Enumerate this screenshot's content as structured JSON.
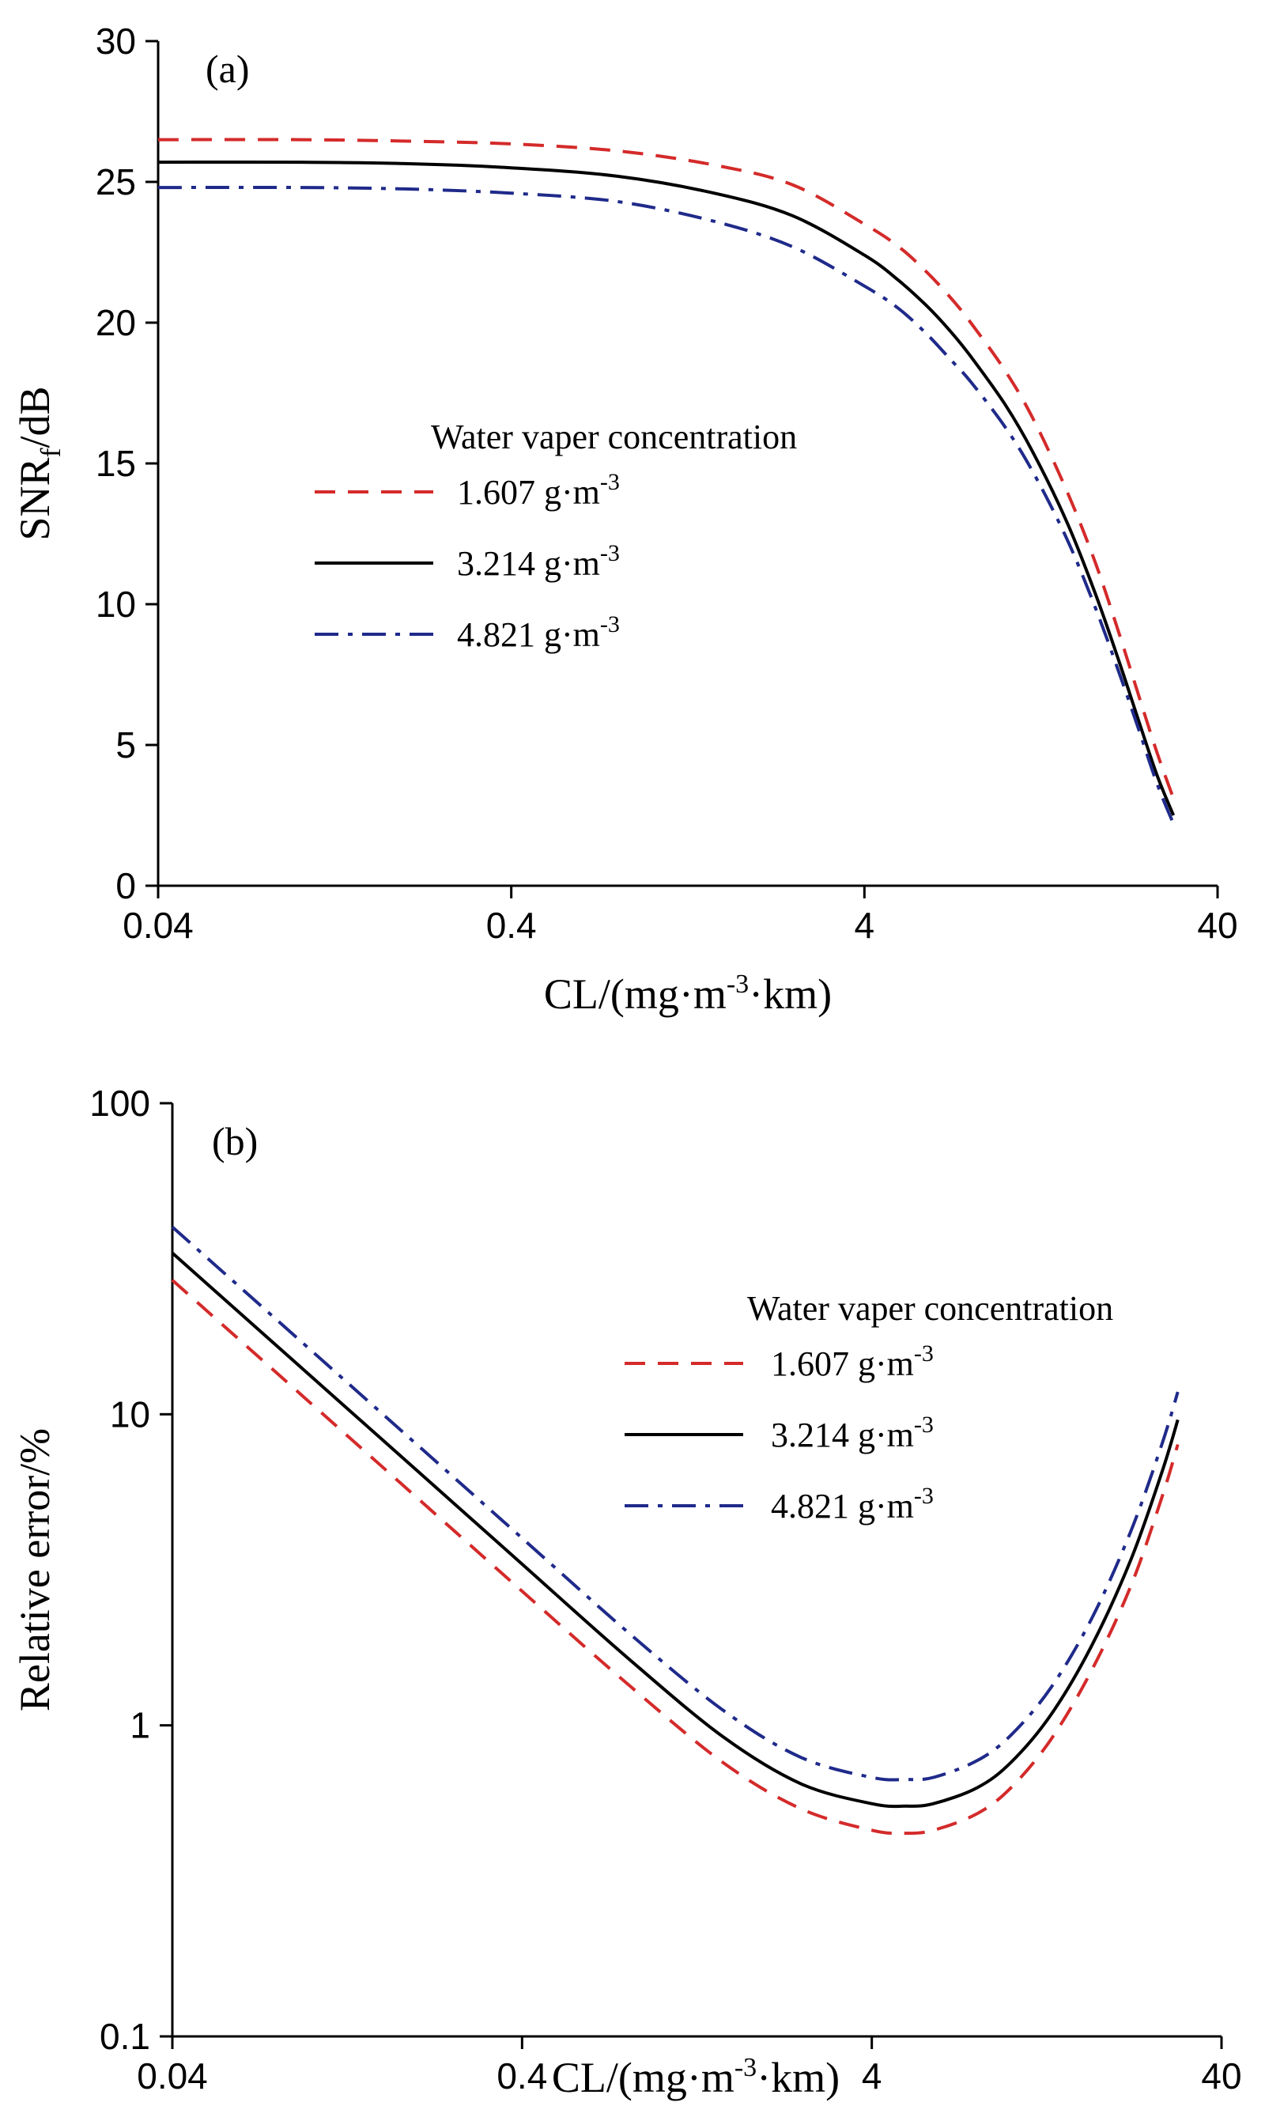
{
  "chart_data": [
    {
      "type": "line",
      "panel_label": "(a)",
      "xscale": "log",
      "xlim": [
        0.04,
        40
      ],
      "ylim": [
        0,
        30
      ],
      "x_ticks": [
        0.04,
        0.4,
        4,
        40
      ],
      "x_tick_labels": [
        "0.04",
        "0.4",
        "4",
        "40"
      ],
      "y_ticks": [
        0,
        5,
        10,
        15,
        20,
        25,
        30
      ],
      "y_tick_labels": [
        "0",
        "5",
        "10",
        "15",
        "20",
        "25",
        "30"
      ],
      "xlabel": "CL/(mg·m",
      "xlabel_sup1": "-3",
      "xlabel_tail": "·km)",
      "ylabel": "SNR",
      "ylabel_sub": "f",
      "ylabel_tail": "/dB",
      "legend_title": "Water vaper concentration",
      "legend_position": "center",
      "series": [
        {
          "name": "1.607 g·m",
          "unit_sup": "-3",
          "color": "#d42a2a",
          "style": "dashed",
          "x": [
            0.04,
            0.1,
            0.2,
            0.4,
            0.8,
            1.5,
            2.5,
            4,
            5,
            6,
            7,
            8,
            10,
            12,
            15,
            18,
            21,
            24,
            27,
            30
          ],
          "y": [
            26.5,
            26.5,
            26.45,
            26.35,
            26.1,
            25.6,
            24.9,
            23.5,
            22.7,
            21.8,
            20.9,
            20.0,
            18.3,
            16.6,
            14.0,
            11.5,
            9.0,
            6.7,
            4.7,
            3.1
          ]
        },
        {
          "name": "3.214 g·m",
          "unit_sup": "-3",
          "color": "#000000",
          "style": "solid",
          "x": [
            0.04,
            0.1,
            0.2,
            0.4,
            0.8,
            1.5,
            2.5,
            4,
            5,
            6,
            7,
            8,
            10,
            12,
            15,
            18,
            21,
            24,
            27,
            30
          ],
          "y": [
            25.7,
            25.7,
            25.65,
            25.5,
            25.2,
            24.6,
            23.8,
            22.4,
            21.5,
            20.6,
            19.7,
            18.8,
            17.1,
            15.4,
            12.9,
            10.4,
            8.0,
            5.8,
            3.9,
            2.5
          ]
        },
        {
          "name": "4.821 g·m",
          "unit_sup": "-3",
          "color": "#1f2a8a",
          "style": "dashdot",
          "x": [
            0.04,
            0.1,
            0.2,
            0.4,
            0.8,
            1.5,
            2.5,
            4,
            5,
            6,
            7,
            8,
            10,
            12,
            15,
            18,
            21,
            24,
            27,
            30
          ],
          "y": [
            24.8,
            24.8,
            24.75,
            24.6,
            24.3,
            23.6,
            22.7,
            21.3,
            20.5,
            19.6,
            18.7,
            17.9,
            16.3,
            14.7,
            12.3,
            9.9,
            7.6,
            5.5,
            3.6,
            2.2
          ]
        }
      ]
    },
    {
      "type": "line",
      "panel_label": "(b)",
      "xscale": "log",
      "yscale": "log",
      "xlim": [
        0.04,
        40
      ],
      "ylim": [
        0.1,
        100
      ],
      "x_ticks": [
        0.04,
        0.4,
        4,
        40
      ],
      "x_tick_labels": [
        "0.04",
        "0.4",
        "4",
        "40"
      ],
      "y_ticks": [
        0.1,
        1,
        10,
        100
      ],
      "y_tick_labels": [
        "0.1",
        "1",
        "10",
        "100"
      ],
      "xlabel": "CL/(mg·m",
      "xlabel_sup1": "-3",
      "xlabel_tail": "·km)",
      "ylabel": "Relative error/%",
      "legend_title": "Water vaper concentration",
      "legend_position": "top-right",
      "series": [
        {
          "name": "1.607 g·m",
          "unit_sup": "-3",
          "color": "#d42a2a",
          "style": "dashed",
          "x": [
            0.04,
            0.1,
            0.2,
            0.4,
            0.8,
            1.5,
            2.5,
            4,
            5,
            6,
            8,
            10,
            13,
            17,
            22,
            27,
            30
          ],
          "y": [
            27.0,
            10.8,
            5.4,
            2.7,
            1.36,
            0.76,
            0.54,
            0.46,
            0.45,
            0.46,
            0.52,
            0.63,
            0.9,
            1.5,
            2.8,
            5.4,
            8.0
          ]
        },
        {
          "name": "3.214 g·m",
          "unit_sup": "-3",
          "color": "#000000",
          "style": "solid",
          "x": [
            0.04,
            0.1,
            0.2,
            0.4,
            0.8,
            1.5,
            2.5,
            4,
            5,
            6,
            8,
            10,
            13,
            17,
            22,
            27,
            30
          ],
          "y": [
            33.0,
            13.2,
            6.6,
            3.3,
            1.65,
            0.92,
            0.65,
            0.56,
            0.55,
            0.56,
            0.63,
            0.76,
            1.08,
            1.8,
            3.4,
            6.5,
            9.6
          ]
        },
        {
          "name": "4.821 g·m",
          "unit_sup": "-3",
          "color": "#1f2a8a",
          "style": "dashdot",
          "x": [
            0.04,
            0.1,
            0.2,
            0.4,
            0.8,
            1.5,
            2.5,
            4,
            5,
            6,
            8,
            10,
            13,
            17,
            22,
            27,
            30
          ],
          "y": [
            40.0,
            16.0,
            8.0,
            4.0,
            2.0,
            1.12,
            0.79,
            0.68,
            0.67,
            0.68,
            0.77,
            0.93,
            1.32,
            2.2,
            4.2,
            8.0,
            11.8
          ]
        }
      ]
    }
  ]
}
